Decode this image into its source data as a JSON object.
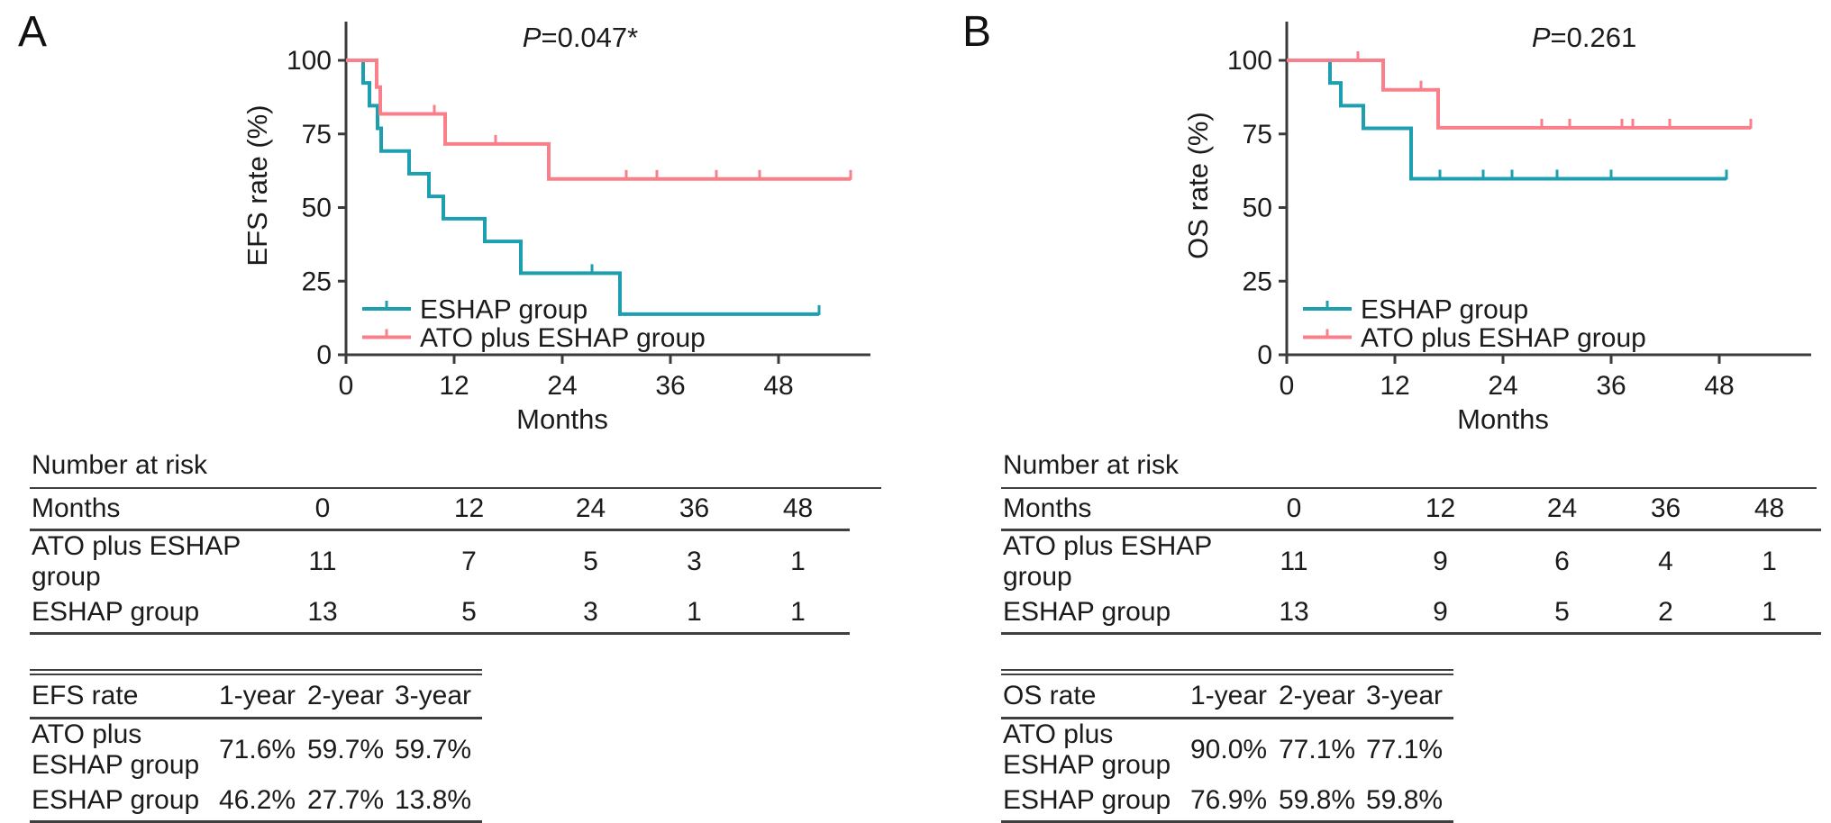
{
  "figure": {
    "panels": [
      {
        "label": "A"
      },
      {
        "label": "B"
      }
    ]
  },
  "colors": {
    "eshap": "#1e9fb0",
    "ato": "#f9808a",
    "axis": "#3b3b3b",
    "text": "#1b1b1b"
  },
  "chart_data": [
    {
      "panel": "A",
      "type": "line",
      "subtype": "kaplan-meier-step",
      "p_label": {
        "italic": "P",
        "rest": "=0.047*"
      },
      "p_x_month": 26,
      "xlabel": "Months",
      "ylabel": "EFS rate (%)",
      "xticks": [
        0,
        12,
        24,
        36,
        48
      ],
      "yticks": [
        0,
        25,
        50,
        75,
        100
      ],
      "xlim": [
        0,
        57
      ],
      "ylim": [
        0,
        100
      ],
      "grid": false,
      "legend_position": "lower-left",
      "series": [
        {
          "name": "ESHAP group",
          "color": "eshap",
          "steps": [
            [
              0,
              100
            ],
            [
              1.9,
              92.3
            ],
            [
              2.6,
              84.6
            ],
            [
              3.5,
              76.9
            ],
            [
              3.9,
              69.2
            ],
            [
              7,
              61.5
            ],
            [
              9.2,
              53.8
            ],
            [
              10.8,
              46.2
            ],
            [
              15.4,
              38.5
            ],
            [
              19.4,
              27.7
            ],
            [
              30.4,
              13.8
            ]
          ],
          "end_x": 52.5,
          "censors": [
            [
              27.3,
              27.7
            ],
            [
              52.5,
              13.8
            ]
          ]
        },
        {
          "name": "ATO plus ESHAP group",
          "color": "ato",
          "steps": [
            [
              0,
              100
            ],
            [
              3.4,
              90.9
            ],
            [
              3.8,
              81.8
            ],
            [
              11,
              71.6
            ],
            [
              22.5,
              59.7
            ]
          ],
          "end_x": 56,
          "censors": [
            [
              9.8,
              81.8
            ],
            [
              16.6,
              71.6
            ],
            [
              31.1,
              59.7
            ],
            [
              34.5,
              59.7
            ],
            [
              41.1,
              59.7
            ],
            [
              45.9,
              59.7
            ],
            [
              56,
              59.7
            ]
          ]
        }
      ]
    },
    {
      "panel": "B",
      "type": "line",
      "subtype": "kaplan-meier-step",
      "p_label": {
        "italic": "P",
        "rest": "=0.261"
      },
      "p_x_month": 33,
      "xlabel": "Months",
      "ylabel": "OS rate (%)",
      "xticks": [
        0,
        12,
        24,
        36,
        48
      ],
      "yticks": [
        0,
        25,
        50,
        75,
        100
      ],
      "xlim": [
        0,
        56
      ],
      "ylim": [
        0,
        100
      ],
      "grid": false,
      "legend_position": "lower-left",
      "series": [
        {
          "name": "ESHAP group",
          "color": "eshap",
          "steps": [
            [
              0,
              100
            ],
            [
              4.8,
              92.3
            ],
            [
              6,
              84.6
            ],
            [
              8.5,
              76.9
            ],
            [
              13.8,
              59.8
            ]
          ],
          "end_x": 48.8,
          "censors": [
            [
              17,
              59.8
            ],
            [
              21.8,
              59.8
            ],
            [
              25,
              59.8
            ],
            [
              30,
              59.8
            ],
            [
              36,
              59.8
            ],
            [
              48.8,
              59.8
            ]
          ]
        },
        {
          "name": "ATO plus ESHAP group",
          "color": "ato",
          "steps": [
            [
              0,
              100
            ],
            [
              10.7,
              90.0
            ],
            [
              16.8,
              77.1
            ]
          ],
          "end_x": 51.5,
          "censors": [
            [
              7.9,
              100
            ],
            [
              14.9,
              90.0
            ],
            [
              28.3,
              77.1
            ],
            [
              31.4,
              77.1
            ],
            [
              37.2,
              77.1
            ],
            [
              38.4,
              77.1
            ],
            [
              42.5,
              77.1
            ],
            [
              51.5,
              77.1
            ]
          ]
        }
      ]
    }
  ],
  "tables": [
    {
      "risk_title": "Number at risk",
      "risk_header": [
        "Months",
        "0",
        "12",
        "24",
        "36",
        "48"
      ],
      "risk_rows": [
        [
          "ATO plus ESHAP group",
          "11",
          "7",
          "5",
          "3",
          "1"
        ],
        [
          "ESHAP group",
          "13",
          "5",
          "3",
          "1",
          "1"
        ]
      ],
      "rate_header": [
        "EFS rate",
        "1-year",
        "2-year",
        "3-year"
      ],
      "rate_rows": [
        [
          "ATO plus ESHAP group",
          "71.6%",
          "59.7%",
          "59.7%"
        ],
        [
          "ESHAP group",
          "46.2%",
          "27.7%",
          "13.8%"
        ]
      ]
    },
    {
      "risk_title": "Number at risk",
      "risk_header": [
        "Months",
        "0",
        "12",
        "24",
        "36",
        "48"
      ],
      "risk_rows": [
        [
          "ATO plus ESHAP group",
          "11",
          "9",
          "6",
          "4",
          "1"
        ],
        [
          "ESHAP group",
          "13",
          "9",
          "5",
          "2",
          "1"
        ]
      ],
      "rate_header": [
        "OS rate",
        "1-year",
        "2-year",
        "3-year"
      ],
      "rate_rows": [
        [
          "ATO plus ESHAP group",
          "90.0%",
          "77.1%",
          "77.1%"
        ],
        [
          "ESHAP group",
          "76.9%",
          "59.8%",
          "59.8%"
        ]
      ]
    }
  ]
}
